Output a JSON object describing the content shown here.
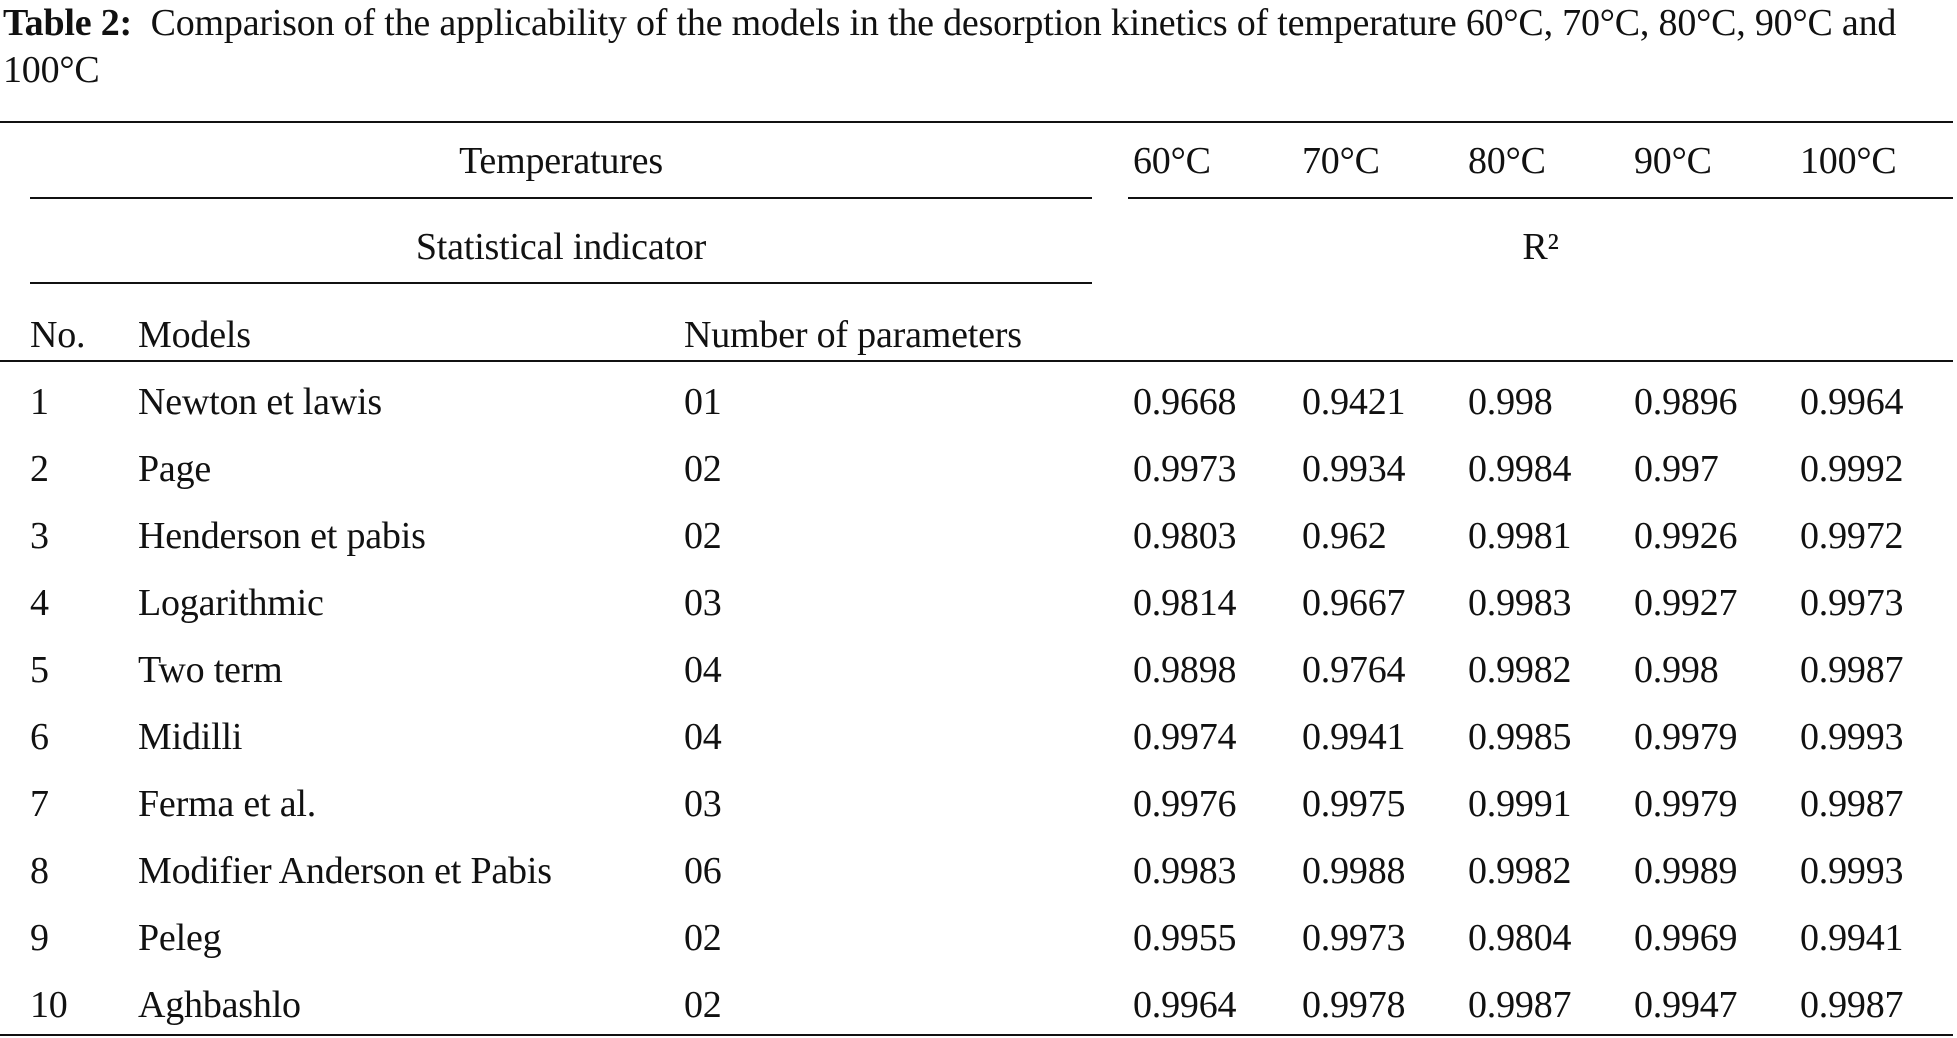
{
  "caption": {
    "label": "Table 2:",
    "text": "Comparison of the applicability of the models in the desorption kinetics of temperature 60°C, 70°C, 80°C, 90°C and 100°C"
  },
  "header": {
    "temperatures_label": "Temperatures",
    "temperatures": [
      "60°C",
      "70°C",
      "80°C",
      "90°C",
      "100°C"
    ],
    "statistical_indicator_label": "Statistical indicator",
    "r2_label": "R²",
    "col_no": "No.",
    "col_models": "Models",
    "col_params": "Number of parameters"
  },
  "rows": [
    {
      "no": "1",
      "model": "Newton et lawis",
      "params": "01",
      "values": [
        "0.9668",
        "0.9421",
        "0.998",
        "0.9896",
        "0.9964"
      ]
    },
    {
      "no": "2",
      "model": "Page",
      "params": "02",
      "values": [
        "0.9973",
        "0.9934",
        "0.9984",
        "0.997",
        "0.9992"
      ]
    },
    {
      "no": "3",
      "model": "Henderson et pabis",
      "params": "02",
      "values": [
        "0.9803",
        "0.962",
        "0.9981",
        "0.9926",
        "0.9972"
      ]
    },
    {
      "no": "4",
      "model": "Logarithmic",
      "params": "03",
      "values": [
        "0.9814",
        "0.9667",
        "0.9983",
        "0.9927",
        "0.9973"
      ]
    },
    {
      "no": "5",
      "model": "Two term",
      "params": "04",
      "values": [
        "0.9898",
        "0.9764",
        "0.9982",
        "0.998",
        "0.9987"
      ]
    },
    {
      "no": "6",
      "model": "Midilli",
      "params": "04",
      "values": [
        "0.9974",
        "0.9941",
        "0.9985",
        "0.9979",
        "0.9993"
      ]
    },
    {
      "no": "7",
      "model": "Ferma et al.",
      "params": "03",
      "values": [
        "0.9976",
        "0.9975",
        "0.9991",
        "0.9979",
        "0.9987"
      ]
    },
    {
      "no": "8",
      "model": "Modifier Anderson et Pabis",
      "params": "06",
      "values": [
        "0.9983",
        "0.9988",
        "0.9982",
        "0.9989",
        "0.9993"
      ]
    },
    {
      "no": "9",
      "model": "Peleg",
      "params": "02",
      "values": [
        "0.9955",
        "0.9973",
        "0.9804",
        "0.9969",
        "0.9941"
      ]
    },
    {
      "no": "10",
      "model": "Aghbashlo",
      "params": "02",
      "values": [
        "0.9964",
        "0.9978",
        "0.9987",
        "0.9947",
        "0.9987"
      ]
    }
  ]
}
